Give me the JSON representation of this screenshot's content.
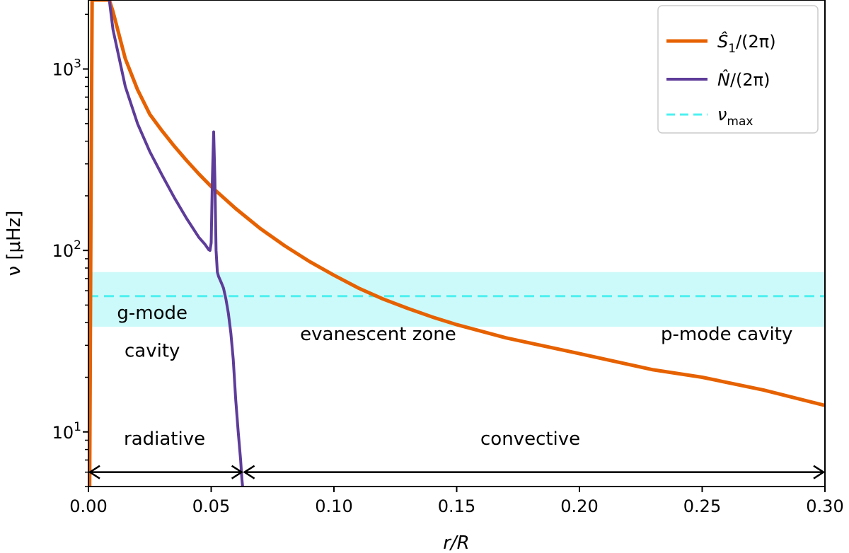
{
  "chart_data": {
    "type": "line",
    "xlabel": "r/R",
    "ylabel": "ν [μHz]",
    "xlim": [
      0.0,
      0.3
    ],
    "ylim": [
      5,
      2400
    ],
    "yscale": "log",
    "grid": false,
    "legend_position": "top-right",
    "x_ticks": [
      "0.00",
      "0.05",
      "0.10",
      "0.15",
      "0.20",
      "0.25",
      "0.30"
    ],
    "y_ticks": [
      {
        "value": 10,
        "base": "10",
        "exp": "1"
      },
      {
        "value": 100,
        "base": "10",
        "exp": "2"
      },
      {
        "value": 1000,
        "base": "10",
        "exp": "3"
      }
    ],
    "series": [
      {
        "name": "Ŝ₁/(2π)",
        "legend_main": "Ŝ",
        "legend_sub": "1",
        "legend_tail": "/(2π)",
        "color": "#e66100",
        "x": [
          0.0005,
          0.001,
          0.0015,
          0.003,
          0.005,
          0.0085,
          0.01,
          0.015,
          0.02,
          0.025,
          0.03,
          0.035,
          0.04,
          0.045,
          0.05,
          0.06,
          0.07,
          0.08,
          0.09,
          0.1,
          0.11,
          0.12,
          0.13,
          0.14,
          0.15,
          0.17,
          0.2,
          0.23,
          0.25,
          0.275,
          0.3
        ],
        "y": [
          5,
          150,
          2400,
          2400,
          2400,
          2400,
          2072,
          1140,
          769,
          562,
          456,
          375,
          313,
          264,
          225,
          170,
          132,
          106,
          87,
          73,
          62,
          54,
          48,
          43,
          39,
          33,
          27,
          22,
          20,
          17,
          14
        ]
      },
      {
        "name": "N̂/(2π)",
        "legend_main": "N̂",
        "legend_tail": "/(2π)",
        "color": "#5e3c99",
        "x": [
          0.0085,
          0.01,
          0.015,
          0.02,
          0.025,
          0.03,
          0.035,
          0.04,
          0.045,
          0.0475,
          0.049,
          0.0495,
          0.05,
          0.0505,
          0.051,
          0.0515,
          0.052,
          0.0525,
          0.053,
          0.054,
          0.055,
          0.056,
          0.057,
          0.058,
          0.059,
          0.06,
          0.061,
          0.062,
          0.0625,
          0.0628
        ],
        "y": [
          2400,
          1650,
          800,
          500,
          350,
          260,
          195,
          150,
          118,
          108,
          101,
          100,
          110,
          250,
          450,
          250,
          100,
          76,
          72,
          67,
          62,
          54,
          45,
          35,
          25,
          15,
          10,
          7,
          5.5,
          5
        ]
      },
      {
        "name": "ν_max",
        "legend_main": "ν",
        "legend_sub": "max",
        "color": "#4ff0f0",
        "style": "dashed",
        "value": 56,
        "band": [
          38,
          76
        ]
      }
    ],
    "annotations": [
      {
        "text": "g-mode",
        "x": 0.026,
        "y": 42
      },
      {
        "text": "cavity",
        "x": 0.026,
        "y": 26
      },
      {
        "text": "evanescent zone",
        "x": 0.118,
        "y": 32
      },
      {
        "text": "p-mode cavity",
        "x": 0.26,
        "y": 32
      },
      {
        "text": "radiative",
        "x": 0.031,
        "y": 8.5
      },
      {
        "text": "convective",
        "x": 0.18,
        "y": 8.5
      }
    ],
    "arrows": [
      {
        "name": "radiative-arrow",
        "x_from": 0.0,
        "x_to": 0.063,
        "y": 6
      },
      {
        "name": "convective-arrow",
        "x_from": 0.063,
        "x_to": 0.3,
        "y": 6
      }
    ]
  }
}
